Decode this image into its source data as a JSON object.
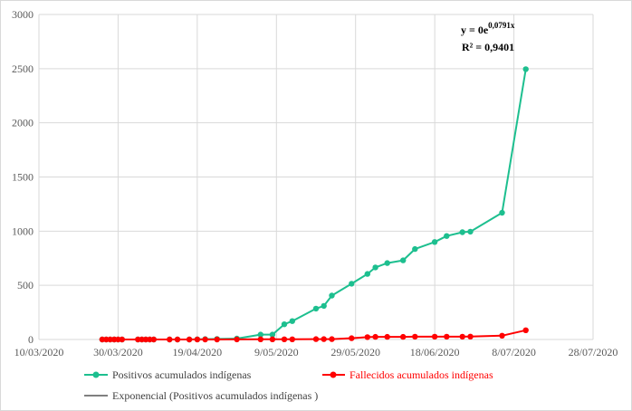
{
  "chart_data": {
    "type": "line",
    "x_type": "date",
    "xlim": [
      "2020-03-10",
      "2020-07-28"
    ],
    "x_ticks": [
      "10/03/2020",
      "30/03/2020",
      "19/04/2020",
      "9/05/2020",
      "29/05/2020",
      "18/06/2020",
      "8/07/2020",
      "28/07/2020"
    ],
    "ylim": [
      0,
      3000
    ],
    "y_ticks": [
      0,
      500,
      1000,
      1500,
      2000,
      2500,
      3000
    ],
    "grid": true,
    "legend_position": "bottom",
    "series": [
      {
        "name": "Positivos acumulados indígenas",
        "color": "#1dbf8f",
        "points": [
          [
            "2020-03-26",
            0
          ],
          [
            "2020-03-27",
            0
          ],
          [
            "2020-03-28",
            0
          ],
          [
            "2020-03-29",
            0
          ],
          [
            "2020-03-30",
            0
          ],
          [
            "2020-03-31",
            0
          ],
          [
            "2020-04-04",
            0
          ],
          [
            "2020-04-05",
            0
          ],
          [
            "2020-04-06",
            0
          ],
          [
            "2020-04-07",
            0
          ],
          [
            "2020-04-08",
            0
          ],
          [
            "2020-04-12",
            0
          ],
          [
            "2020-04-14",
            0
          ],
          [
            "2020-04-17",
            0
          ],
          [
            "2020-04-19",
            2
          ],
          [
            "2020-04-21",
            3
          ],
          [
            "2020-04-24",
            5
          ],
          [
            "2020-04-29",
            8
          ],
          [
            "2020-05-05",
            45
          ],
          [
            "2020-05-08",
            45
          ],
          [
            "2020-05-11",
            140
          ],
          [
            "2020-05-13",
            170
          ],
          [
            "2020-05-19",
            285
          ],
          [
            "2020-05-21",
            310
          ],
          [
            "2020-05-23",
            405
          ],
          [
            "2020-05-28",
            515
          ],
          [
            "2020-06-01",
            605
          ],
          [
            "2020-06-03",
            665
          ],
          [
            "2020-06-06",
            705
          ],
          [
            "2020-06-10",
            730
          ],
          [
            "2020-06-13",
            835
          ],
          [
            "2020-06-18",
            900
          ],
          [
            "2020-06-21",
            955
          ],
          [
            "2020-06-25",
            990
          ],
          [
            "2020-06-27",
            995
          ],
          [
            "2020-07-05",
            1170
          ],
          [
            "2020-07-11",
            2495
          ]
        ]
      },
      {
        "name": "Fallecidos acumulados indígenas",
        "color": "#ff0000",
        "points": [
          [
            "2020-03-26",
            0
          ],
          [
            "2020-03-27",
            0
          ],
          [
            "2020-03-28",
            0
          ],
          [
            "2020-03-29",
            0
          ],
          [
            "2020-03-30",
            0
          ],
          [
            "2020-03-31",
            0
          ],
          [
            "2020-04-04",
            0
          ],
          [
            "2020-04-05",
            0
          ],
          [
            "2020-04-06",
            0
          ],
          [
            "2020-04-07",
            0
          ],
          [
            "2020-04-08",
            0
          ],
          [
            "2020-04-12",
            0
          ],
          [
            "2020-04-14",
            0
          ],
          [
            "2020-04-17",
            0
          ],
          [
            "2020-04-19",
            0
          ],
          [
            "2020-04-21",
            0
          ],
          [
            "2020-04-24",
            0
          ],
          [
            "2020-04-29",
            1
          ],
          [
            "2020-05-05",
            2
          ],
          [
            "2020-05-08",
            2
          ],
          [
            "2020-05-11",
            2
          ],
          [
            "2020-05-13",
            2
          ],
          [
            "2020-05-19",
            3
          ],
          [
            "2020-05-21",
            3
          ],
          [
            "2020-05-23",
            3
          ],
          [
            "2020-05-28",
            12
          ],
          [
            "2020-06-01",
            22
          ],
          [
            "2020-06-03",
            24
          ],
          [
            "2020-06-06",
            24
          ],
          [
            "2020-06-10",
            24
          ],
          [
            "2020-06-13",
            26
          ],
          [
            "2020-06-18",
            26
          ],
          [
            "2020-06-21",
            26
          ],
          [
            "2020-06-25",
            26
          ],
          [
            "2020-06-27",
            27
          ],
          [
            "2020-07-05",
            35
          ],
          [
            "2020-07-11",
            85
          ]
        ]
      },
      {
        "name": "Exponencial (Positivos acumulados indígenas )",
        "color": "#000000",
        "points": []
      }
    ],
    "annotation": {
      "equation_base": "y = 0e",
      "equation_exponent": "0,0791x",
      "r_squared": "R² = 0,9401"
    }
  }
}
